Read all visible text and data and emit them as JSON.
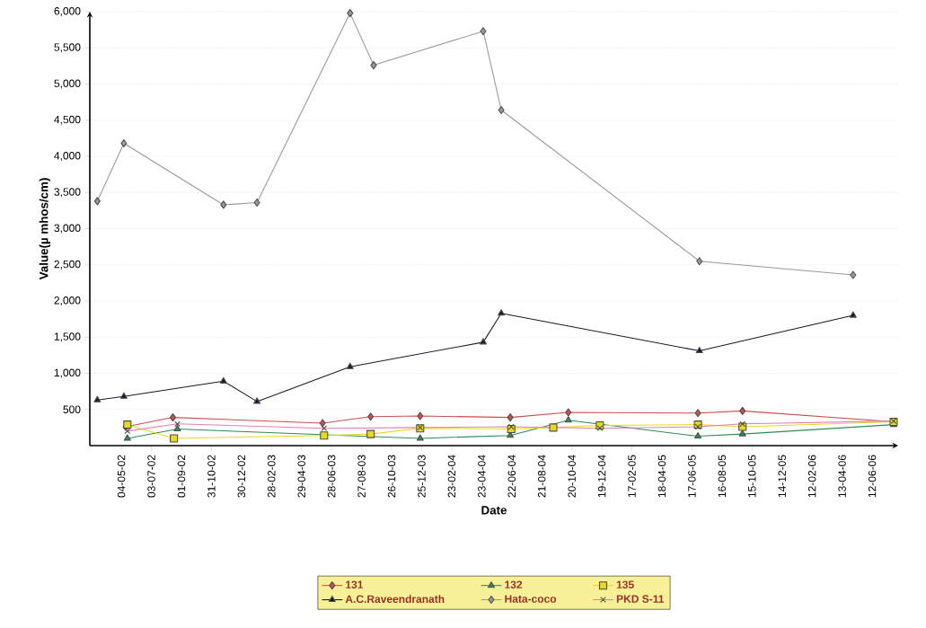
{
  "chart_data": {
    "type": "line",
    "xlabel": "Date",
    "ylabel": "Value(µ mhos/cm)",
    "xlim": [
      "2002-03-02",
      "2006-08-03"
    ],
    "ylim": [
      0,
      6000
    ],
    "xticks": [
      {
        "value": "2002-05-04",
        "label": "04-05-02"
      },
      {
        "value": "2002-07-03",
        "label": "03-07-02"
      },
      {
        "value": "2002-09-01",
        "label": "01-09-02"
      },
      {
        "value": "2002-10-31",
        "label": "31-10-02"
      },
      {
        "value": "2002-12-30",
        "label": "30-12-02"
      },
      {
        "value": "2003-02-28",
        "label": "28-02-03"
      },
      {
        "value": "2003-04-29",
        "label": "29-04-03"
      },
      {
        "value": "2003-06-28",
        "label": "28-06-03"
      },
      {
        "value": "2003-08-27",
        "label": "27-08-03"
      },
      {
        "value": "2003-10-26",
        "label": "26-10-03"
      },
      {
        "value": "2003-12-25",
        "label": "25-12-03"
      },
      {
        "value": "2004-02-23",
        "label": "23-02-04"
      },
      {
        "value": "2004-04-23",
        "label": "23-04-04"
      },
      {
        "value": "2004-06-22",
        "label": "22-06-04"
      },
      {
        "value": "2004-08-21",
        "label": "21-08-04"
      },
      {
        "value": "2004-10-20",
        "label": "20-10-04"
      },
      {
        "value": "2004-12-19",
        "label": "19-12-04"
      },
      {
        "value": "2005-02-17",
        "label": "17-02-05"
      },
      {
        "value": "2005-04-18",
        "label": "18-04-05"
      },
      {
        "value": "2005-06-17",
        "label": "17-06-05"
      },
      {
        "value": "2005-08-16",
        "label": "16-08-05"
      },
      {
        "value": "2005-10-15",
        "label": "15-10-05"
      },
      {
        "value": "2005-12-14",
        "label": "14-12-05"
      },
      {
        "value": "2006-02-12",
        "label": "12-02-06"
      },
      {
        "value": "2006-04-13",
        "label": "13-04-06"
      },
      {
        "value": "2006-06-12",
        "label": "12-06-06"
      }
    ],
    "yticks": [
      500,
      {
        "value": 1000,
        "label": "1,000"
      },
      {
        "value": 1500,
        "label": "1,500"
      },
      {
        "value": 2000,
        "label": "2,000"
      },
      {
        "value": 2500,
        "label": "2,500"
      },
      {
        "value": 3000,
        "label": "3,000"
      },
      {
        "value": 3500,
        "label": "3,500"
      },
      {
        "value": 4000,
        "label": "4,000"
      },
      {
        "value": 4500,
        "label": "4,500"
      },
      {
        "value": 5000,
        "label": "5,000"
      },
      {
        "value": 5500,
        "label": "5,500"
      },
      {
        "value": 6000,
        "label": "6,000"
      }
    ],
    "grid": "y",
    "legend": "bottom",
    "series": [
      {
        "name": "131",
        "color": "#c8504d",
        "marker": "diamond",
        "x": [
          "2002-05-13",
          "2002-08-15",
          "2003-06-10",
          "2003-09-14",
          "2003-12-22",
          "2004-06-19",
          "2004-10-13",
          "2005-06-29",
          "2005-09-26",
          "2006-07-25"
        ],
        "values": [
          260,
          390,
          310,
          400,
          410,
          390,
          460,
          450,
          480,
          330
        ]
      },
      {
        "name": "132",
        "color": "#2e8b57",
        "marker": "triangle",
        "x": [
          "2002-05-16",
          "2002-08-24",
          "2003-12-22",
          "2004-06-19",
          "2004-10-13",
          "2005-06-29",
          "2005-09-26",
          "2006-07-25"
        ],
        "values": [
          100,
          230,
          100,
          140,
          350,
          130,
          160,
          290
        ]
      },
      {
        "name": "135",
        "color": "#e8d820",
        "marker": "square",
        "x": [
          "2002-05-16",
          "2002-08-17",
          "2003-06-13",
          "2003-09-14",
          "2003-12-22",
          "2004-06-21",
          "2004-09-13",
          "2004-12-15",
          "2005-06-29",
          "2005-09-26",
          "2006-07-25"
        ],
        "values": [
          290,
          100,
          140,
          160,
          240,
          230,
          250,
          280,
          290,
          260,
          330
        ]
      },
      {
        "name": "A.C.Raveendranath",
        "color": "#1a1a2e",
        "marker": "triangle",
        "x": [
          "2002-03-17",
          "2002-05-09",
          "2002-11-24",
          "2003-01-30",
          "2003-08-04",
          "2004-04-26",
          "2004-06-01",
          "2005-07-02",
          "2006-05-05"
        ],
        "values": [
          630,
          680,
          890,
          610,
          1090,
          1430,
          1830,
          1310,
          1800
        ]
      },
      {
        "name": "Hata-coco",
        "color": "#999999",
        "marker": "diamond",
        "x": [
          "2002-03-17",
          "2002-05-09",
          "2002-11-24",
          "2003-01-30",
          "2003-08-04",
          "2003-09-20",
          "2004-04-26",
          "2004-06-01",
          "2005-07-02",
          "2006-05-05"
        ],
        "values": [
          3380,
          4180,
          3330,
          3360,
          5980,
          5260,
          5730,
          4640,
          2550,
          2360
        ]
      },
      {
        "name": "PKD S-11",
        "color": "#e080b0",
        "marker": "cross",
        "x": [
          "2002-05-16",
          "2002-08-24",
          "2003-06-13",
          "2003-12-22",
          "2004-06-21",
          "2004-12-15",
          "2005-06-29",
          "2005-09-26",
          "2006-07-25"
        ],
        "values": [
          200,
          300,
          240,
          250,
          260,
          240,
          260,
          300,
          340
        ]
      }
    ]
  }
}
